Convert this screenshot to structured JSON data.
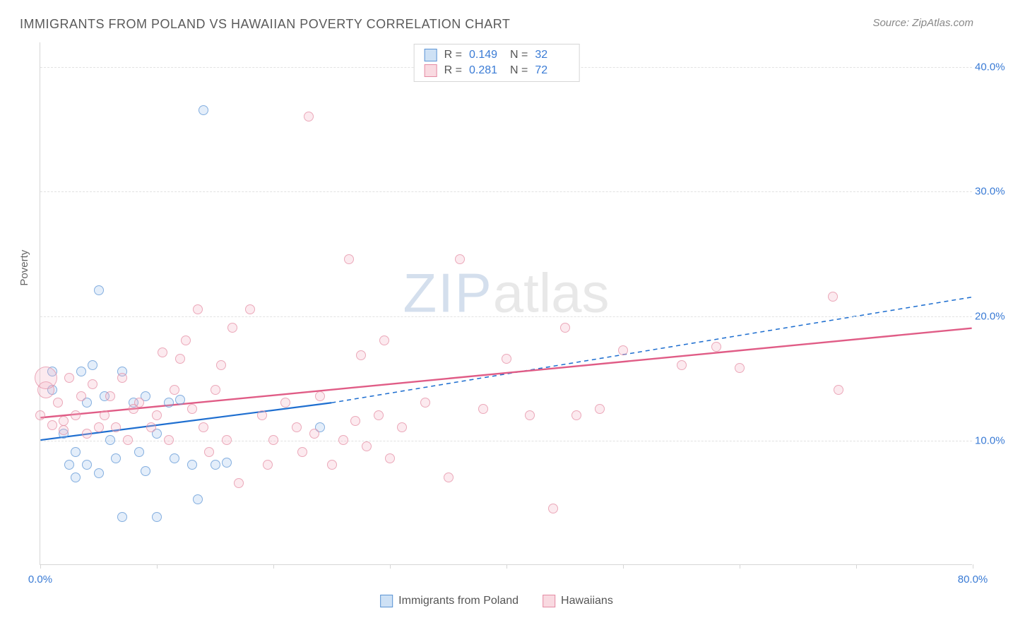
{
  "title": "IMMIGRANTS FROM POLAND VS HAWAIIAN POVERTY CORRELATION CHART",
  "source": "Source: ZipAtlas.com",
  "watermark": {
    "bold": "ZIP",
    "light": "atlas"
  },
  "chart": {
    "type": "scatter",
    "background_color": "#ffffff",
    "grid_color": "#e2e2e2",
    "border_color": "#d6d6d6",
    "axis_label_color": "#3a7bd5",
    "y_axis_title": "Poverty",
    "xlim": [
      0,
      80
    ],
    "ylim": [
      0,
      42
    ],
    "x_ticks": [
      0,
      10,
      20,
      30,
      40,
      50,
      60,
      70,
      80
    ],
    "x_tick_labels": {
      "0": "0.0%",
      "80": "80.0%"
    },
    "y_ticks": [
      10,
      20,
      30,
      40
    ],
    "y_tick_labels": {
      "10": "10.0%",
      "20": "20.0%",
      "30": "30.0%",
      "40": "40.0%"
    },
    "marker_radius": 7,
    "marker_opacity_fill": 0.28,
    "marker_opacity_stroke": 0.7,
    "series": [
      {
        "key": "poland",
        "label": "Immigrants from Poland",
        "color_fill": "#9ec3ec",
        "color_stroke": "#5a93d4",
        "R": "0.149",
        "N": "32",
        "trend": {
          "solid_from": [
            0,
            10.0
          ],
          "solid_to": [
            25,
            13.0
          ],
          "dash_to": [
            80,
            21.5
          ],
          "stroke": "#1f6fd0",
          "width": 2.2
        },
        "points": [
          {
            "x": 1,
            "y": 15.5
          },
          {
            "x": 1,
            "y": 14
          },
          {
            "x": 2,
            "y": 10.5
          },
          {
            "x": 2.5,
            "y": 8
          },
          {
            "x": 3,
            "y": 7
          },
          {
            "x": 3,
            "y": 9
          },
          {
            "x": 3.5,
            "y": 15.5
          },
          {
            "x": 4,
            "y": 13
          },
          {
            "x": 4,
            "y": 8
          },
          {
            "x": 4.5,
            "y": 16
          },
          {
            "x": 5,
            "y": 7.3
          },
          {
            "x": 5,
            "y": 22
          },
          {
            "x": 5.5,
            "y": 13.5
          },
          {
            "x": 6,
            "y": 10
          },
          {
            "x": 6.5,
            "y": 8.5
          },
          {
            "x": 7,
            "y": 3.8
          },
          {
            "x": 7,
            "y": 15.5
          },
          {
            "x": 8,
            "y": 13
          },
          {
            "x": 8.5,
            "y": 9
          },
          {
            "x": 9,
            "y": 13.5
          },
          {
            "x": 9,
            "y": 7.5
          },
          {
            "x": 10,
            "y": 10.5
          },
          {
            "x": 10,
            "y": 3.8
          },
          {
            "x": 11,
            "y": 13
          },
          {
            "x": 11.5,
            "y": 8.5
          },
          {
            "x": 12,
            "y": 13.2
          },
          {
            "x": 13,
            "y": 8
          },
          {
            "x": 13.5,
            "y": 5.2
          },
          {
            "x": 14,
            "y": 36.5
          },
          {
            "x": 15,
            "y": 8
          },
          {
            "x": 16,
            "y": 8.2
          },
          {
            "x": 24,
            "y": 11
          }
        ]
      },
      {
        "key": "hawaiians",
        "label": "Hawaiians",
        "color_fill": "#f3b5c4",
        "color_stroke": "#e48ba3",
        "R": "0.281",
        "N": "72",
        "trend": {
          "solid_from": [
            0,
            11.8
          ],
          "solid_to": [
            80,
            19.0
          ],
          "stroke": "#e05c86",
          "width": 2.4
        },
        "points": [
          {
            "x": 0,
            "y": 12
          },
          {
            "x": 0.5,
            "y": 14,
            "r": 12
          },
          {
            "x": 0.5,
            "y": 15,
            "r": 16
          },
          {
            "x": 1,
            "y": 11.2
          },
          {
            "x": 1.5,
            "y": 13
          },
          {
            "x": 2,
            "y": 11.5
          },
          {
            "x": 2,
            "y": 10.8
          },
          {
            "x": 2.5,
            "y": 15
          },
          {
            "x": 3,
            "y": 12
          },
          {
            "x": 3.5,
            "y": 13.5
          },
          {
            "x": 4,
            "y": 10.5
          },
          {
            "x": 4.5,
            "y": 14.5
          },
          {
            "x": 5,
            "y": 11
          },
          {
            "x": 5.5,
            "y": 12
          },
          {
            "x": 6,
            "y": 13.5
          },
          {
            "x": 6.5,
            "y": 11
          },
          {
            "x": 7,
            "y": 15
          },
          {
            "x": 7.5,
            "y": 10
          },
          {
            "x": 8,
            "y": 12.5
          },
          {
            "x": 8.5,
            "y": 13
          },
          {
            "x": 9.5,
            "y": 11
          },
          {
            "x": 10,
            "y": 12
          },
          {
            "x": 10.5,
            "y": 17
          },
          {
            "x": 11,
            "y": 10
          },
          {
            "x": 11.5,
            "y": 14
          },
          {
            "x": 12,
            "y": 16.5
          },
          {
            "x": 12.5,
            "y": 18
          },
          {
            "x": 13,
            "y": 12.5
          },
          {
            "x": 13.5,
            "y": 20.5
          },
          {
            "x": 14,
            "y": 11
          },
          {
            "x": 14.5,
            "y": 9
          },
          {
            "x": 15,
            "y": 14
          },
          {
            "x": 15.5,
            "y": 16
          },
          {
            "x": 16,
            "y": 10
          },
          {
            "x": 16.5,
            "y": 19
          },
          {
            "x": 17,
            "y": 6.5
          },
          {
            "x": 18,
            "y": 20.5
          },
          {
            "x": 19,
            "y": 12
          },
          {
            "x": 19.5,
            "y": 8
          },
          {
            "x": 20,
            "y": 10
          },
          {
            "x": 21,
            "y": 13
          },
          {
            "x": 22,
            "y": 11
          },
          {
            "x": 22.5,
            "y": 9
          },
          {
            "x": 23,
            "y": 36
          },
          {
            "x": 23.5,
            "y": 10.5
          },
          {
            "x": 24,
            "y": 13.5
          },
          {
            "x": 25,
            "y": 8
          },
          {
            "x": 26,
            "y": 10
          },
          {
            "x": 26.5,
            "y": 24.5
          },
          {
            "x": 27,
            "y": 11.5
          },
          {
            "x": 27.5,
            "y": 16.8
          },
          {
            "x": 28,
            "y": 9.5
          },
          {
            "x": 29,
            "y": 12
          },
          {
            "x": 29.5,
            "y": 18
          },
          {
            "x": 30,
            "y": 8.5
          },
          {
            "x": 31,
            "y": 11
          },
          {
            "x": 33,
            "y": 13
          },
          {
            "x": 35,
            "y": 7
          },
          {
            "x": 36,
            "y": 24.5
          },
          {
            "x": 38,
            "y": 12.5
          },
          {
            "x": 40,
            "y": 16.5
          },
          {
            "x": 42,
            "y": 12
          },
          {
            "x": 44,
            "y": 4.5
          },
          {
            "x": 45,
            "y": 19
          },
          {
            "x": 46,
            "y": 12
          },
          {
            "x": 48,
            "y": 12.5
          },
          {
            "x": 50,
            "y": 17.2
          },
          {
            "x": 55,
            "y": 16
          },
          {
            "x": 58,
            "y": 17.5
          },
          {
            "x": 60,
            "y": 15.8
          },
          {
            "x": 68,
            "y": 21.5
          },
          {
            "x": 68.5,
            "y": 14
          }
        ]
      }
    ]
  },
  "legend": {
    "R_label": "R =",
    "N_label": "N ="
  }
}
